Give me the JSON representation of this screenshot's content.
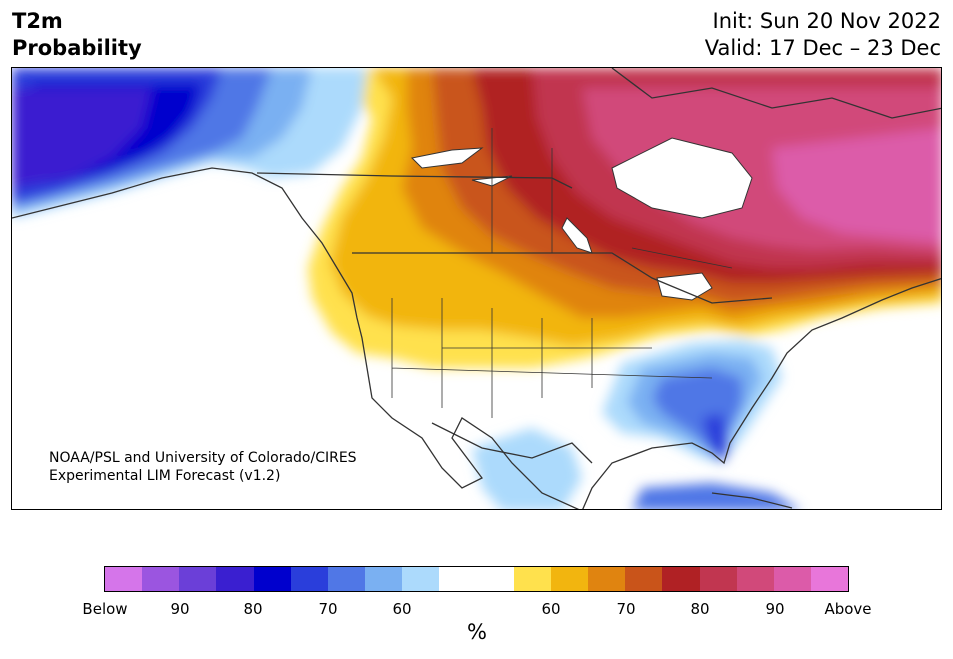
{
  "title": {
    "line1": "T2m",
    "line2": "Probability"
  },
  "dates": {
    "init": "Init: Sun 20 Nov 2022",
    "valid": "Valid: 17 Dec – 23 Dec"
  },
  "credit": {
    "line1": "NOAA/PSL and University of Colorado/CIRES",
    "line2": "Experimental LIM Forecast (v1.2)"
  },
  "legend": {
    "unit": "%",
    "colors": [
      "#d575ea",
      "#9b55e0",
      "#6b3fd8",
      "#3a1fd0",
      "#0000cd",
      "#2a3edb",
      "#5077e6",
      "#7ab0f2",
      "#acdafc",
      "#ffffff",
      "#ffffff",
      "#ffe14d",
      "#f2b50f",
      "#e08410",
      "#c9541a",
      "#b02124",
      "#c13650",
      "#d1497a",
      "#dc5ba9",
      "#e876da"
    ],
    "ticks": [
      "Below",
      "90",
      "80",
      "70",
      "60",
      "60",
      "70",
      "80",
      "90",
      "Above"
    ]
  },
  "map": {
    "region": "North America",
    "regions": [
      {
        "name": "alaska-below-90",
        "color": "#3a1fd0"
      },
      {
        "name": "canada-above-80",
        "color": "#b02124"
      },
      {
        "name": "southeast-below-70",
        "color": "#5077e6"
      },
      {
        "name": "canadian-arctic-above-90",
        "color": "#dc5ba9"
      }
    ]
  }
}
